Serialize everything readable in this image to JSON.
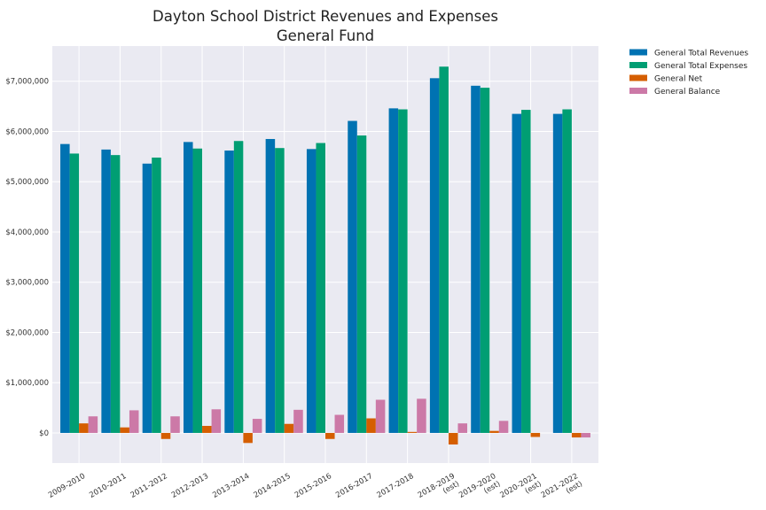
{
  "chart_data": {
    "type": "bar",
    "title_lines": [
      "Dayton School District Revenues and Expenses",
      "General Fund"
    ],
    "xlabel": "",
    "ylabel": "",
    "ylim": [
      -600000,
      7700000
    ],
    "yticks": [
      0,
      1000000,
      2000000,
      3000000,
      4000000,
      5000000,
      6000000,
      7000000
    ],
    "ytick_labels": [
      "$0",
      "$1,000,000",
      "$2,000,000",
      "$3,000,000",
      "$4,000,000",
      "$5,000,000",
      "$6,000,000",
      "$7,000,000"
    ],
    "grid": true,
    "legend_position": "outside top-right",
    "categories": [
      [
        "2009-2010"
      ],
      [
        "2010-2011"
      ],
      [
        "2011-2012"
      ],
      [
        "2012-2013"
      ],
      [
        "2013-2014"
      ],
      [
        "2014-2015"
      ],
      [
        "2015-2016"
      ],
      [
        "2016-2017"
      ],
      [
        "2017-2018"
      ],
      [
        "2018-2019",
        "(est)"
      ],
      [
        "2019-2020",
        "(est)"
      ],
      [
        "2020-2021",
        "(est)"
      ],
      [
        "2021-2022",
        "(est)"
      ]
    ],
    "series": [
      {
        "name": "General Total Revenues",
        "color": "#0072b2",
        "values": [
          5750000,
          5640000,
          5360000,
          5790000,
          5620000,
          5850000,
          5650000,
          6210000,
          6460000,
          7060000,
          6910000,
          6350000,
          6350000
        ]
      },
      {
        "name": "General Total Expenses",
        "color": "#009e73",
        "values": [
          5560000,
          5530000,
          5480000,
          5660000,
          5810000,
          5670000,
          5770000,
          5920000,
          6440000,
          7290000,
          6870000,
          6430000,
          6440000
        ]
      },
      {
        "name": "General Net",
        "color": "#d55e00",
        "values": [
          190000,
          110000,
          -120000,
          140000,
          -200000,
          180000,
          -120000,
          290000,
          20000,
          -230000,
          40000,
          -80000,
          -90000
        ]
      },
      {
        "name": "General Balance",
        "color": "#cc79a7",
        "values": [
          330000,
          450000,
          330000,
          470000,
          280000,
          460000,
          360000,
          660000,
          680000,
          190000,
          240000,
          0,
          -90000
        ]
      }
    ]
  }
}
